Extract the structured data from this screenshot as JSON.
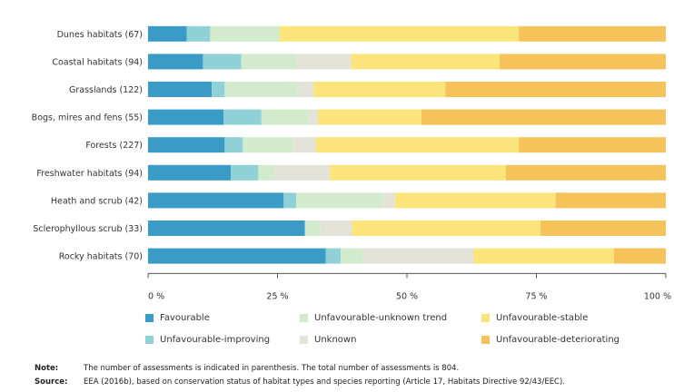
{
  "chart_data": {
    "type": "bar",
    "orientation": "horizontal",
    "stacked": true,
    "percent_stacked": true,
    "categories": [
      "Dunes habitats (67)",
      "Coastal habitats (94)",
      "Grasslands (122)",
      "Bogs, mires and fens (55)",
      "Forests (227)",
      "Freshwater habitats (94)",
      "Heath and scrub (42)",
      "Sclerophyllous scrub (33)",
      "Rocky habitats (70)"
    ],
    "series": [
      {
        "name": "Favourable",
        "color": "#3a9cc6",
        "values": [
          7.5,
          10.6,
          12.3,
          14.6,
          14.8,
          16.0,
          26.2,
          30.3,
          34.3
        ]
      },
      {
        "name": "Unfavourable-improving",
        "color": "#8fd1d6",
        "values": [
          4.5,
          7.4,
          2.5,
          7.3,
          3.5,
          5.3,
          2.4,
          0.0,
          2.9
        ]
      },
      {
        "name": "Unfavourable-unknown trend",
        "color": "#d3ebcd",
        "values": [
          13.4,
          10.6,
          13.9,
          9.1,
          9.7,
          3.2,
          16.7,
          3.0,
          4.3
        ]
      },
      {
        "name": "Unknown",
        "color": "#e3e3d9",
        "values": [
          0.0,
          10.6,
          3.3,
          1.8,
          4.4,
          10.6,
          2.4,
          6.1,
          21.4
        ]
      },
      {
        "name": "Unfavourable-stable",
        "color": "#fbe57a",
        "values": [
          46.2,
          28.7,
          25.4,
          20.0,
          39.2,
          34.0,
          31.0,
          36.4,
          27.1
        ]
      },
      {
        "name": "Unfavourable-deteriorating",
        "color": "#f6c35a",
        "values": [
          28.4,
          32.1,
          42.6,
          47.2,
          28.4,
          30.9,
          21.3,
          24.2,
          10.0
        ]
      }
    ],
    "xlim": [
      0,
      100
    ],
    "xticks": [
      "0 %",
      "25 %",
      "50 %",
      "75 %",
      "100 %"
    ],
    "legend_position": "bottom",
    "grid": false
  },
  "footnotes": {
    "note_label": "Note:",
    "note_text": "The number of assessments is indicated in parenthesis. The total number of assessments is 804.",
    "source_label": "Source:",
    "source_text": "EEA (2016b), based on conservation status of habitat types and species reporting (Article 17, Habitats Directive 92/43/EEC)."
  }
}
